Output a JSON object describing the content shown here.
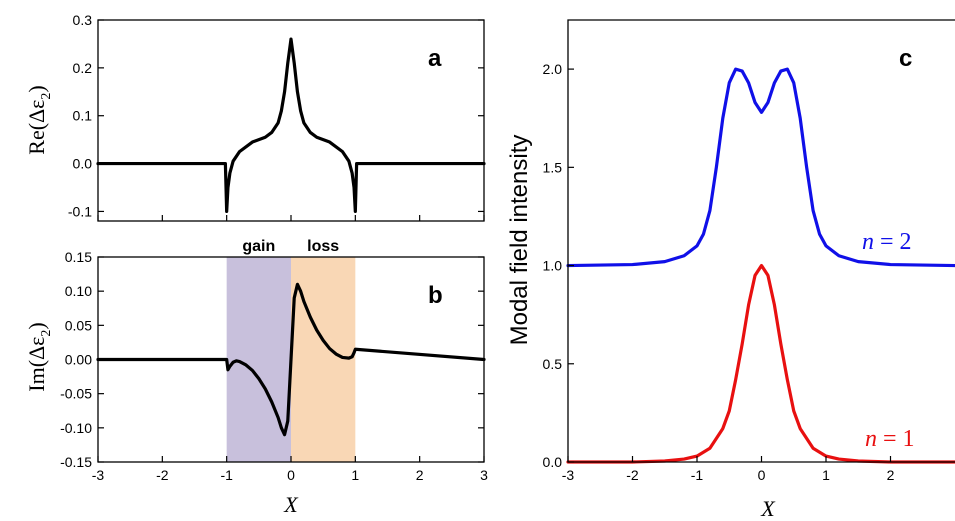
{
  "chart_data": [
    {
      "panel": "a",
      "type": "line",
      "letter": "a",
      "ylabel": "Re(Δε",
      "ylabel_sub": "2",
      "xlim": [
        -3,
        3
      ],
      "ylim": [
        -0.12,
        0.3
      ],
      "yticks": [
        "0.3",
        "0.2",
        "0.1",
        "0.0",
        "-0.1"
      ],
      "ytick_values": [
        0.3,
        0.2,
        0.1,
        0.0,
        -0.1
      ],
      "xticks": [],
      "series": [
        {
          "color": "#000000",
          "x": [
            -3,
            -1.02,
            -1.0,
            -0.98,
            -0.95,
            -0.9,
            -0.8,
            -0.6,
            -0.4,
            -0.3,
            -0.2,
            -0.15,
            -0.1,
            -0.05,
            0,
            0.05,
            0.1,
            0.15,
            0.2,
            0.3,
            0.4,
            0.6,
            0.8,
            0.9,
            0.95,
            0.98,
            1.0,
            1.02,
            3
          ],
          "y": [
            0,
            0,
            -0.1,
            -0.05,
            -0.02,
            0.005,
            0.025,
            0.045,
            0.055,
            0.065,
            0.085,
            0.11,
            0.15,
            0.21,
            0.26,
            0.21,
            0.15,
            0.11,
            0.085,
            0.065,
            0.055,
            0.045,
            0.025,
            0.005,
            -0.02,
            -0.05,
            -0.1,
            0,
            0
          ]
        }
      ]
    },
    {
      "panel": "b",
      "type": "line",
      "letter": "b",
      "ylabel": "Im(Δε",
      "ylabel_sub": "2",
      "xlabel": "X",
      "xlim": [
        -3,
        3
      ],
      "ylim": [
        -0.15,
        0.15
      ],
      "yticks": [
        "0.15",
        "0.10",
        "0.05",
        "0.00",
        "-0.05",
        "-0.10",
        "-0.15"
      ],
      "ytick_values": [
        0.15,
        0.1,
        0.05,
        0.0,
        -0.05,
        -0.1,
        -0.15
      ],
      "xticks": [
        "-3",
        "-2",
        "-1",
        "0",
        "1",
        "2",
        "3"
      ],
      "xtick_values": [
        -3,
        -2,
        -1,
        0,
        1,
        2,
        3
      ],
      "regions": [
        {
          "label": "gain",
          "from": -1,
          "to": 0,
          "color": "#c8c0dc"
        },
        {
          "label": "loss",
          "from": 0,
          "to": 1,
          "color": "#f9d7b5"
        }
      ],
      "series": [
        {
          "color": "#000000",
          "x": [
            -3,
            -1.0,
            -0.98,
            -0.95,
            -0.9,
            -0.85,
            -0.8,
            -0.7,
            -0.6,
            -0.5,
            -0.4,
            -0.3,
            -0.2,
            -0.15,
            -0.1,
            -0.05,
            0,
            0.05,
            0.1,
            0.15,
            0.2,
            0.3,
            0.4,
            0.5,
            0.6,
            0.7,
            0.8,
            0.9,
            0.95,
            0.98,
            1.0,
            3
          ],
          "y": [
            0,
            0,
            -0.015,
            -0.01,
            -0.004,
            -0.002,
            -0.003,
            -0.008,
            -0.016,
            -0.028,
            -0.043,
            -0.062,
            -0.085,
            -0.1,
            -0.11,
            -0.09,
            0,
            0.09,
            0.11,
            0.1,
            0.085,
            0.062,
            0.043,
            0.028,
            0.016,
            0.008,
            0.003,
            0.002,
            0.004,
            0.01,
            0.015,
            0
          ]
        }
      ]
    },
    {
      "panel": "c",
      "type": "line",
      "letter": "c",
      "ylabel": "Modal field intensity",
      "xlabel": "X",
      "xlim": [
        -3,
        3
      ],
      "ylim": [
        0,
        2.25
      ],
      "yticks": [
        "2.0",
        "1.5",
        "1.0",
        "0.5",
        "0.0"
      ],
      "ytick_values": [
        2.0,
        1.5,
        1.0,
        0.5,
        0.0
      ],
      "xticks": [
        "-3",
        "-2",
        "-1",
        "0",
        "1",
        "2"
      ],
      "xtick_values": [
        -3,
        -2,
        -1,
        0,
        1,
        2
      ],
      "series": [
        {
          "name": "n = 2",
          "name_n": "n",
          "name_rest": "= 2",
          "color": "#1010e8",
          "x": [
            -3,
            -2,
            -1.5,
            -1.2,
            -1.0,
            -0.9,
            -0.8,
            -0.7,
            -0.6,
            -0.5,
            -0.4,
            -0.3,
            -0.2,
            -0.1,
            0,
            0.1,
            0.2,
            0.3,
            0.4,
            0.5,
            0.6,
            0.7,
            0.8,
            0.9,
            1.0,
            1.2,
            1.5,
            2,
            3
          ],
          "y": [
            1.0,
            1.005,
            1.02,
            1.05,
            1.1,
            1.16,
            1.28,
            1.5,
            1.75,
            1.93,
            2.0,
            1.99,
            1.93,
            1.83,
            1.78,
            1.83,
            1.93,
            1.99,
            2.0,
            1.93,
            1.75,
            1.5,
            1.28,
            1.16,
            1.1,
            1.05,
            1.02,
            1.005,
            1.0
          ]
        },
        {
          "name": "n = 1",
          "name_n": "n",
          "name_rest": "= 1",
          "color": "#e81010",
          "x": [
            -3,
            -2,
            -1.5,
            -1.2,
            -1.0,
            -0.8,
            -0.6,
            -0.5,
            -0.4,
            -0.3,
            -0.2,
            -0.1,
            0,
            0.1,
            0.2,
            0.3,
            0.4,
            0.5,
            0.6,
            0.8,
            1.0,
            1.2,
            1.5,
            2,
            3
          ],
          "y": [
            0,
            0,
            0.005,
            0.015,
            0.03,
            0.07,
            0.17,
            0.26,
            0.42,
            0.6,
            0.8,
            0.95,
            1.0,
            0.95,
            0.8,
            0.6,
            0.42,
            0.26,
            0.17,
            0.07,
            0.03,
            0.015,
            0.005,
            0,
            0
          ]
        }
      ]
    }
  ]
}
